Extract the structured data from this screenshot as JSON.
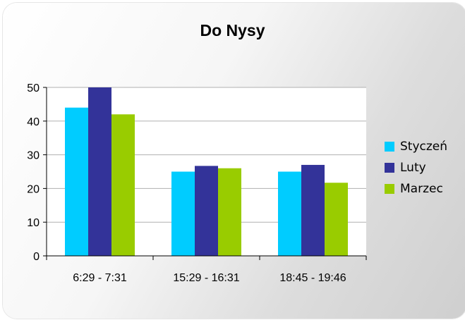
{
  "chart_data": {
    "type": "bar",
    "title": "Do Nysy",
    "xlabel": "",
    "ylabel": "",
    "categories": [
      "6:29 - 7:31",
      "15:29 - 16:31",
      "18:45 - 19:46"
    ],
    "series": [
      {
        "name": "Styczeń",
        "values": [
          44,
          25,
          25
        ],
        "color": "#00ccff"
      },
      {
        "name": "Luty",
        "values": [
          50,
          26.7,
          27
        ],
        "color": "#333399"
      },
      {
        "name": "Marzec",
        "values": [
          42,
          26,
          21.7
        ],
        "color": "#99cc00"
      }
    ],
    "ylim": [
      0,
      50
    ],
    "yticks": [
      0,
      10,
      20,
      30,
      40,
      50
    ],
    "grid": true,
    "legend": "right"
  }
}
